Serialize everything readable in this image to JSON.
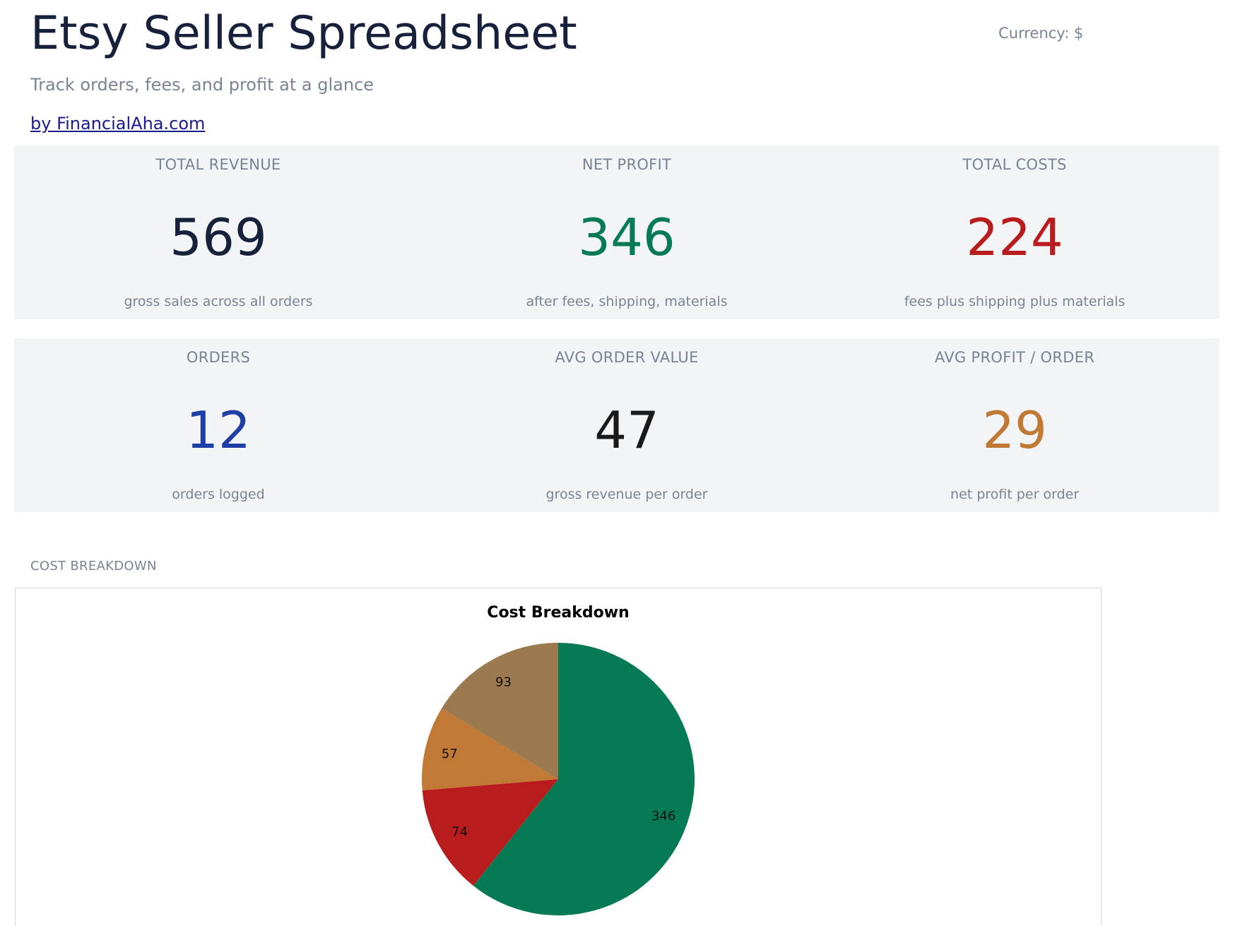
{
  "header": {
    "title": "Etsy Seller Spreadsheet",
    "subtitle": "Track orders, fees, and profit at a glance",
    "byline": "by FinancialAha.com",
    "currency": "Currency: $"
  },
  "kpis_row1": [
    {
      "label": "TOTAL REVENUE",
      "value": "569",
      "note": "gross sales across all orders",
      "color": "#17213b"
    },
    {
      "label": "NET PROFIT",
      "value": "346",
      "note": "after fees, shipping, materials",
      "color": "#067a55"
    },
    {
      "label": "TOTAL COSTS",
      "value": "224",
      "note": "fees plus shipping plus materials",
      "color": "#b81c1c"
    }
  ],
  "kpis_row2": [
    {
      "label": "ORDERS",
      "value": "12",
      "note": "orders logged",
      "color": "#1f3fa6"
    },
    {
      "label": "AVG ORDER VALUE",
      "value": "47",
      "note": "gross revenue per order",
      "color": "#1a1a1a"
    },
    {
      "label": "AVG PROFIT / ORDER",
      "value": "29",
      "note": "net profit per order",
      "color": "#c07a36"
    }
  ],
  "section": {
    "label": "COST BREAKDOWN"
  },
  "chart_data": {
    "type": "pie",
    "title": "Cost Breakdown",
    "slices": [
      {
        "value": 346,
        "label": "346",
        "color": "#067a55"
      },
      {
        "value": 74,
        "label": "74",
        "color": "#b81c1c"
      },
      {
        "value": 57,
        "label": "57",
        "color": "#c07a36"
      },
      {
        "value": 93,
        "label": "93",
        "color": "#9a7a4e"
      }
    ],
    "start": "top",
    "direction": "clockwise"
  }
}
